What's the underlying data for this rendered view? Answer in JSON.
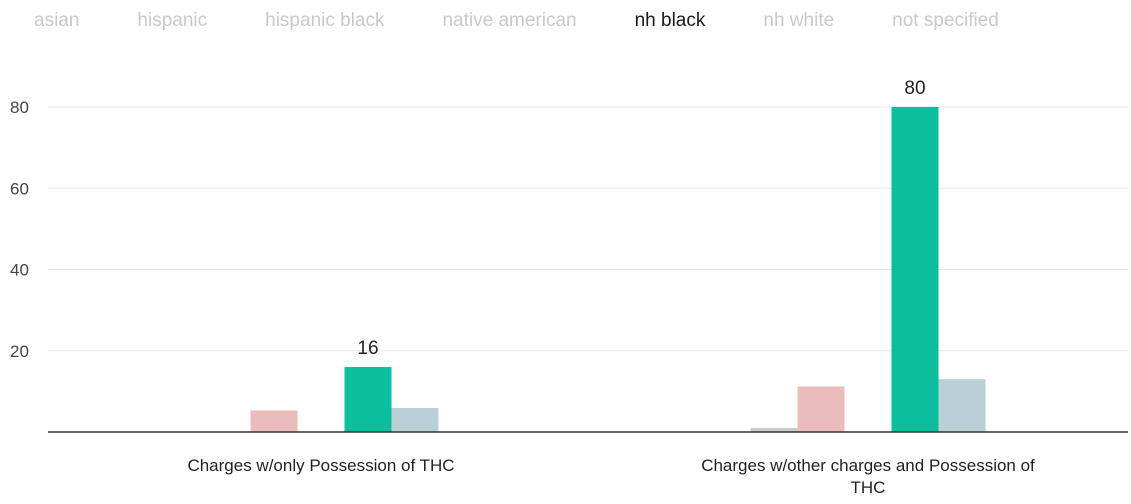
{
  "legend": {
    "items": [
      {
        "label": "asian",
        "active": false
      },
      {
        "label": "hispanic",
        "active": false
      },
      {
        "label": "hispanic black",
        "active": false
      },
      {
        "label": "native american",
        "active": false
      },
      {
        "label": "nh black",
        "active": true
      },
      {
        "label": "nh white",
        "active": false
      },
      {
        "label": "not specified",
        "active": false
      }
    ]
  },
  "chart_data": {
    "type": "bar",
    "categories": [
      [
        "Charges w/only Possession of THC"
      ],
      [
        "Charges w/other charges and Possession of",
        "THC"
      ]
    ],
    "series": [
      {
        "name": "asian",
        "values": [
          0,
          0
        ],
        "color": "#d9d9d9"
      },
      {
        "name": "hispanic",
        "values": [
          0,
          1
        ],
        "color": "#c8cccc"
      },
      {
        "name": "hispanic black",
        "values": [
          5.3,
          11.2
        ],
        "color": "#ebbcbc"
      },
      {
        "name": "native american",
        "values": [
          0,
          0
        ],
        "color": "#d9d9d9"
      },
      {
        "name": "nh black",
        "values": [
          16,
          80
        ],
        "color": "#0bbf9e"
      },
      {
        "name": "nh white",
        "values": [
          5.9,
          13
        ],
        "color": "#b9d0d6"
      },
      {
        "name": "not specified",
        "values": [
          0,
          0
        ],
        "color": "#d9d9d9"
      }
    ],
    "data_labels": [
      {
        "series": "nh black",
        "category_index": 0,
        "text": "16"
      },
      {
        "series": "nh black",
        "category_index": 1,
        "text": "80"
      }
    ],
    "y_ticks": [
      20,
      40,
      60,
      80
    ],
    "ylim": [
      0,
      80
    ],
    "grid": true,
    "legend_position": "top"
  }
}
